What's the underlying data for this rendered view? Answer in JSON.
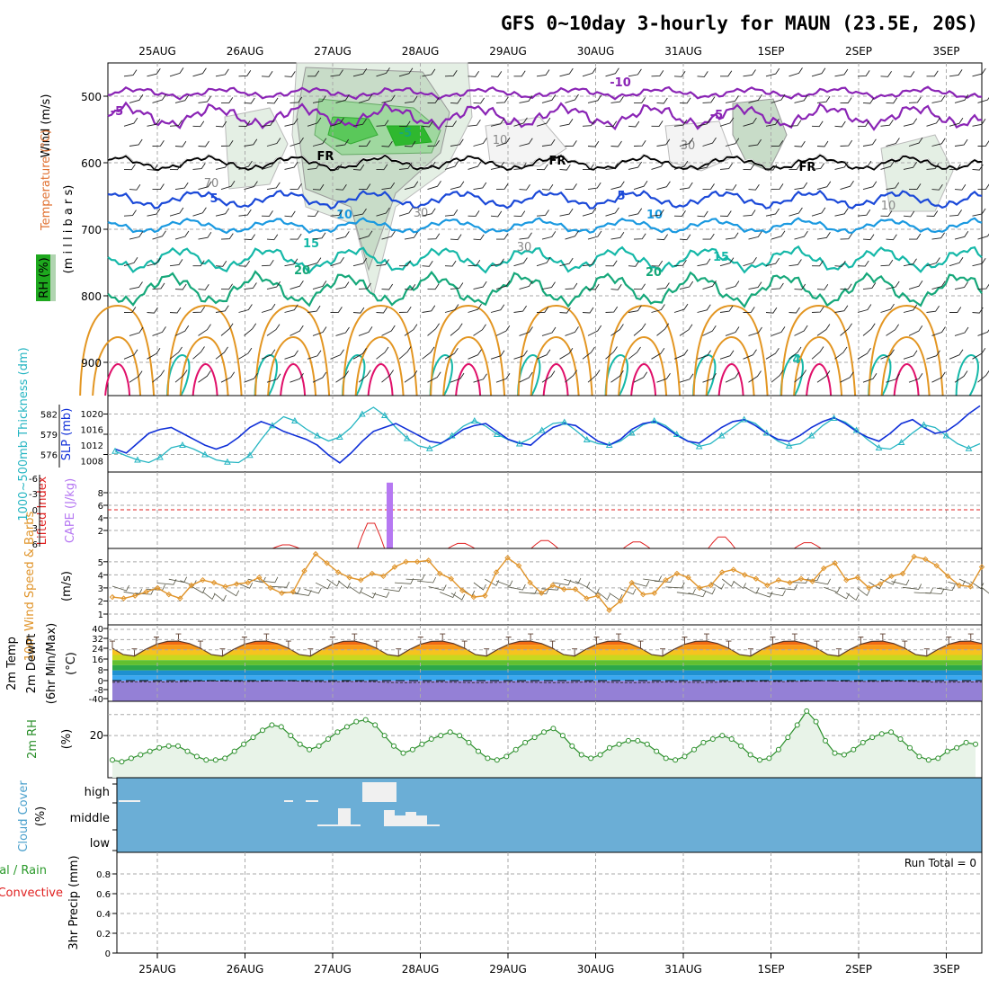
{
  "title": "GFS 0~10day 3-hourly for MAUN (23.5E, 20S)",
  "colors": {
    "rh_green": "#5ac85a",
    "rh_light": "#e4efe4",
    "rh_mid": "#c8dcc8",
    "purple": "#8a24b5",
    "black": "#000000",
    "blue_dark": "#1b49d8",
    "blue_light": "#1a99e0",
    "teal": "#15b8a8",
    "green": "#16a87a",
    "orange": "#e39622",
    "magenta": "#e0106a",
    "cape": "#b678f2",
    "li_red": "#e02020",
    "cloud_bg": "#6baed6",
    "cloud_fill": "#f0f0f0",
    "slp": "#1030d8",
    "thk": "#25b5c2",
    "wind": "#e0942a",
    "rh2": "#2b8f2b"
  },
  "chart_data": {
    "type": "meteogram",
    "dates": [
      "25AUG",
      "26AUG",
      "27AUG",
      "28AUG",
      "29AUG",
      "30AUG",
      "31AUG",
      "1SEP",
      "2SEP",
      "3SEP"
    ],
    "panels": [
      {
        "id": "upper_air",
        "ylabel_parts": [
          "Wind (m/s)",
          "Temperature (°C)",
          "RH (%)",
          "(m i l l i b a r s)"
        ],
        "yticks": [
          500,
          600,
          700,
          800,
          900
        ],
        "ylim": [
          450,
          950
        ],
        "isotherm_labels": [
          "-10",
          "-5",
          "-5",
          "-5",
          "FR",
          "FR",
          "FR",
          "5",
          "5",
          "10",
          "10",
          "15",
          "15",
          "20",
          "20",
          "4",
          "10",
          "10",
          "30",
          "30",
          "30",
          "70"
        ],
        "isotherms": [
          {
            "label": "-10",
            "base": 495,
            "color": "purple"
          },
          {
            "label": "-5",
            "base": 530,
            "color": "purple"
          },
          {
            "label": "FR",
            "base": 600,
            "color": "black"
          },
          {
            "label": "5",
            "base": 655,
            "color": "blue_dark"
          },
          {
            "label": "10",
            "base": 695,
            "color": "blue_light"
          },
          {
            "label": "15",
            "base": 745,
            "color": "teal"
          },
          {
            "label": "20",
            "base": 790,
            "color": "green"
          }
        ]
      },
      {
        "id": "thickness_slp",
        "ylabel": "1000~500mb Thickness (dm)",
        "ylabel2": "SLP (mb)",
        "yticks_left": [
          576,
          579,
          582
        ],
        "yticks_right": [
          1008,
          1012,
          1016,
          1020
        ],
        "thickness": [
          576.5,
          575.8,
          575.2,
          574.8,
          575.6,
          577.0,
          577.4,
          576.8,
          576.0,
          575.2,
          574.9,
          574.8,
          575.9,
          578.2,
          580.3,
          581.6,
          581.0,
          579.8,
          578.8,
          578.0,
          578.6,
          580.0,
          582.0,
          583.0,
          581.8,
          580.0,
          578.4,
          577.3,
          576.9,
          577.6,
          578.8,
          580.2,
          581.0,
          580.2,
          579.0,
          578.2,
          577.6,
          578.4,
          579.6,
          580.6,
          580.8,
          579.6,
          578.2,
          577.6,
          577.4,
          578.0,
          579.2,
          580.4,
          581.0,
          580.3,
          579.0,
          578.0,
          577.2,
          577.6,
          578.8,
          580.0,
          581.2,
          580.6,
          579.2,
          578.0,
          577.3,
          577.6,
          578.8,
          580.3,
          581.4,
          580.8,
          579.6,
          578.2,
          577.0,
          576.8,
          577.8,
          579.2,
          580.4,
          580.0,
          578.8,
          577.6,
          576.9,
          577.6
        ],
        "slp": [
          1011.0,
          1010.0,
          1012.5,
          1015.0,
          1016.0,
          1016.5,
          1015.0,
          1013.5,
          1012.0,
          1011.0,
          1012.0,
          1014.0,
          1016.5,
          1018.0,
          1017.0,
          1015.5,
          1014.5,
          1013.5,
          1012.0,
          1009.5,
          1007.5,
          1010.0,
          1013.0,
          1015.5,
          1016.5,
          1017.5,
          1016.0,
          1014.5,
          1013.0,
          1012.5,
          1014.0,
          1016.0,
          1017.0,
          1017.5,
          1015.5,
          1013.5,
          1012.5,
          1012.0,
          1014.5,
          1016.5,
          1017.5,
          1017.0,
          1015.0,
          1013.0,
          1012.0,
          1013.5,
          1016.0,
          1017.5,
          1018.0,
          1016.5,
          1014.5,
          1013.0,
          1012.5,
          1014.5,
          1016.5,
          1018.0,
          1018.5,
          1017.0,
          1015.0,
          1013.5,
          1013.0,
          1014.5,
          1016.5,
          1018.0,
          1019.0,
          1017.5,
          1015.5,
          1014.0,
          1013.0,
          1015.0,
          1017.5,
          1018.5,
          1016.5,
          1015.0,
          1015.5,
          1017.5,
          1020.0,
          1022.0
        ]
      },
      {
        "id": "cape_li",
        "ylabel": "Lifted Index",
        "ylabel2": "CAPE (J/kg)",
        "yticks_left": [
          "-6",
          "-3",
          "0",
          "3",
          "6"
        ],
        "yticks_right": [
          8,
          6,
          4,
          2
        ],
        "cape": [
          {
            "x": 5.0,
            "value": 9.6
          }
        ],
        "li_bumps": [
          {
            "x": 1.95,
            "h": 0.5
          },
          {
            "x": 2.92,
            "h": 3.5
          },
          {
            "x": 3.95,
            "h": 0.7
          },
          {
            "x": 4.9,
            "h": 1.1
          },
          {
            "x": 5.95,
            "h": 0.9
          },
          {
            "x": 6.92,
            "h": 1.6
          },
          {
            "x": 7.9,
            "h": 0.8
          }
        ]
      },
      {
        "id": "wind10m",
        "ylabel": "10m Wind Speed & Barbs",
        "yunit": "(m/s)",
        "yticks": [
          1,
          2,
          3,
          4,
          5
        ],
        "speed": [
          2.3,
          2.2,
          2.4,
          2.7,
          3.0,
          2.5,
          2.2,
          3.2,
          3.6,
          3.4,
          3.1,
          3.3,
          3.4,
          3.8,
          3.0,
          2.6,
          2.7,
          4.3,
          5.6,
          4.9,
          4.2,
          3.8,
          3.6,
          4.1,
          3.9,
          4.6,
          5.0,
          5.0,
          5.1,
          4.1,
          3.7,
          2.8,
          2.3,
          2.4,
          4.2,
          5.3,
          4.7,
          3.4,
          2.6,
          3.2,
          2.9,
          2.9,
          2.2,
          2.4,
          1.3,
          2.0,
          3.4,
          2.5,
          2.6,
          3.6,
          4.1,
          3.8,
          3.0,
          3.2,
          4.2,
          4.4,
          4.0,
          3.7,
          3.2,
          3.6,
          3.4,
          3.7,
          3.5,
          4.5,
          4.9,
          3.6,
          3.8,
          3.0,
          3.3,
          3.9,
          4.1,
          5.4,
          5.2,
          4.7,
          3.9,
          3.2,
          3.1,
          4.6
        ]
      },
      {
        "id": "temp2m",
        "ylabel": "2m Temp 2m DewPt (6hr Min/Max)",
        "yunit": "(°C)",
        "yticks": [
          "40",
          "32",
          "24",
          "16",
          "8",
          "0",
          "-8",
          "-40"
        ],
        "temp_daily_max": 31,
        "temp_daily_min": 17,
        "dewpt_range": [
          -9,
          0
        ]
      },
      {
        "id": "rh2m",
        "ylabel": "2m RH",
        "yunit": "(%)",
        "yticks": [
          20
        ],
        "rh": [
          6,
          5,
          7,
          9,
          11,
          13,
          14,
          14,
          11,
          8,
          6,
          6,
          7,
          11,
          15,
          19,
          23,
          26,
          25,
          20,
          15,
          12,
          14,
          18,
          22,
          25,
          28,
          29,
          26,
          20,
          14,
          10,
          12,
          15,
          18,
          20,
          22,
          20,
          16,
          11,
          7,
          6,
          8,
          12,
          16,
          19,
          22,
          24,
          20,
          14,
          9,
          7,
          9,
          13,
          15,
          17,
          17,
          15,
          11,
          7,
          6,
          8,
          12,
          16,
          18,
          20,
          18,
          14,
          9,
          6,
          7,
          12,
          19,
          26,
          34,
          28,
          17,
          10,
          9,
          12,
          16,
          19,
          21,
          22,
          18,
          13,
          8,
          6,
          7,
          11,
          13,
          16,
          15
        ]
      },
      {
        "id": "cloud",
        "ylabel": "Cloud Cover (%)",
        "levels": [
          "high",
          "middle",
          "low"
        ]
      },
      {
        "id": "precip",
        "ylabel": "3hr Precip (mm)",
        "ylabel_left": [
          "Total / Rain",
          "Convective"
        ],
        "yticks": [
          "0.8",
          "0.6",
          "0.4",
          "0.2",
          "0"
        ],
        "run_total_label": "Run Total = 0",
        "values": []
      }
    ]
  }
}
